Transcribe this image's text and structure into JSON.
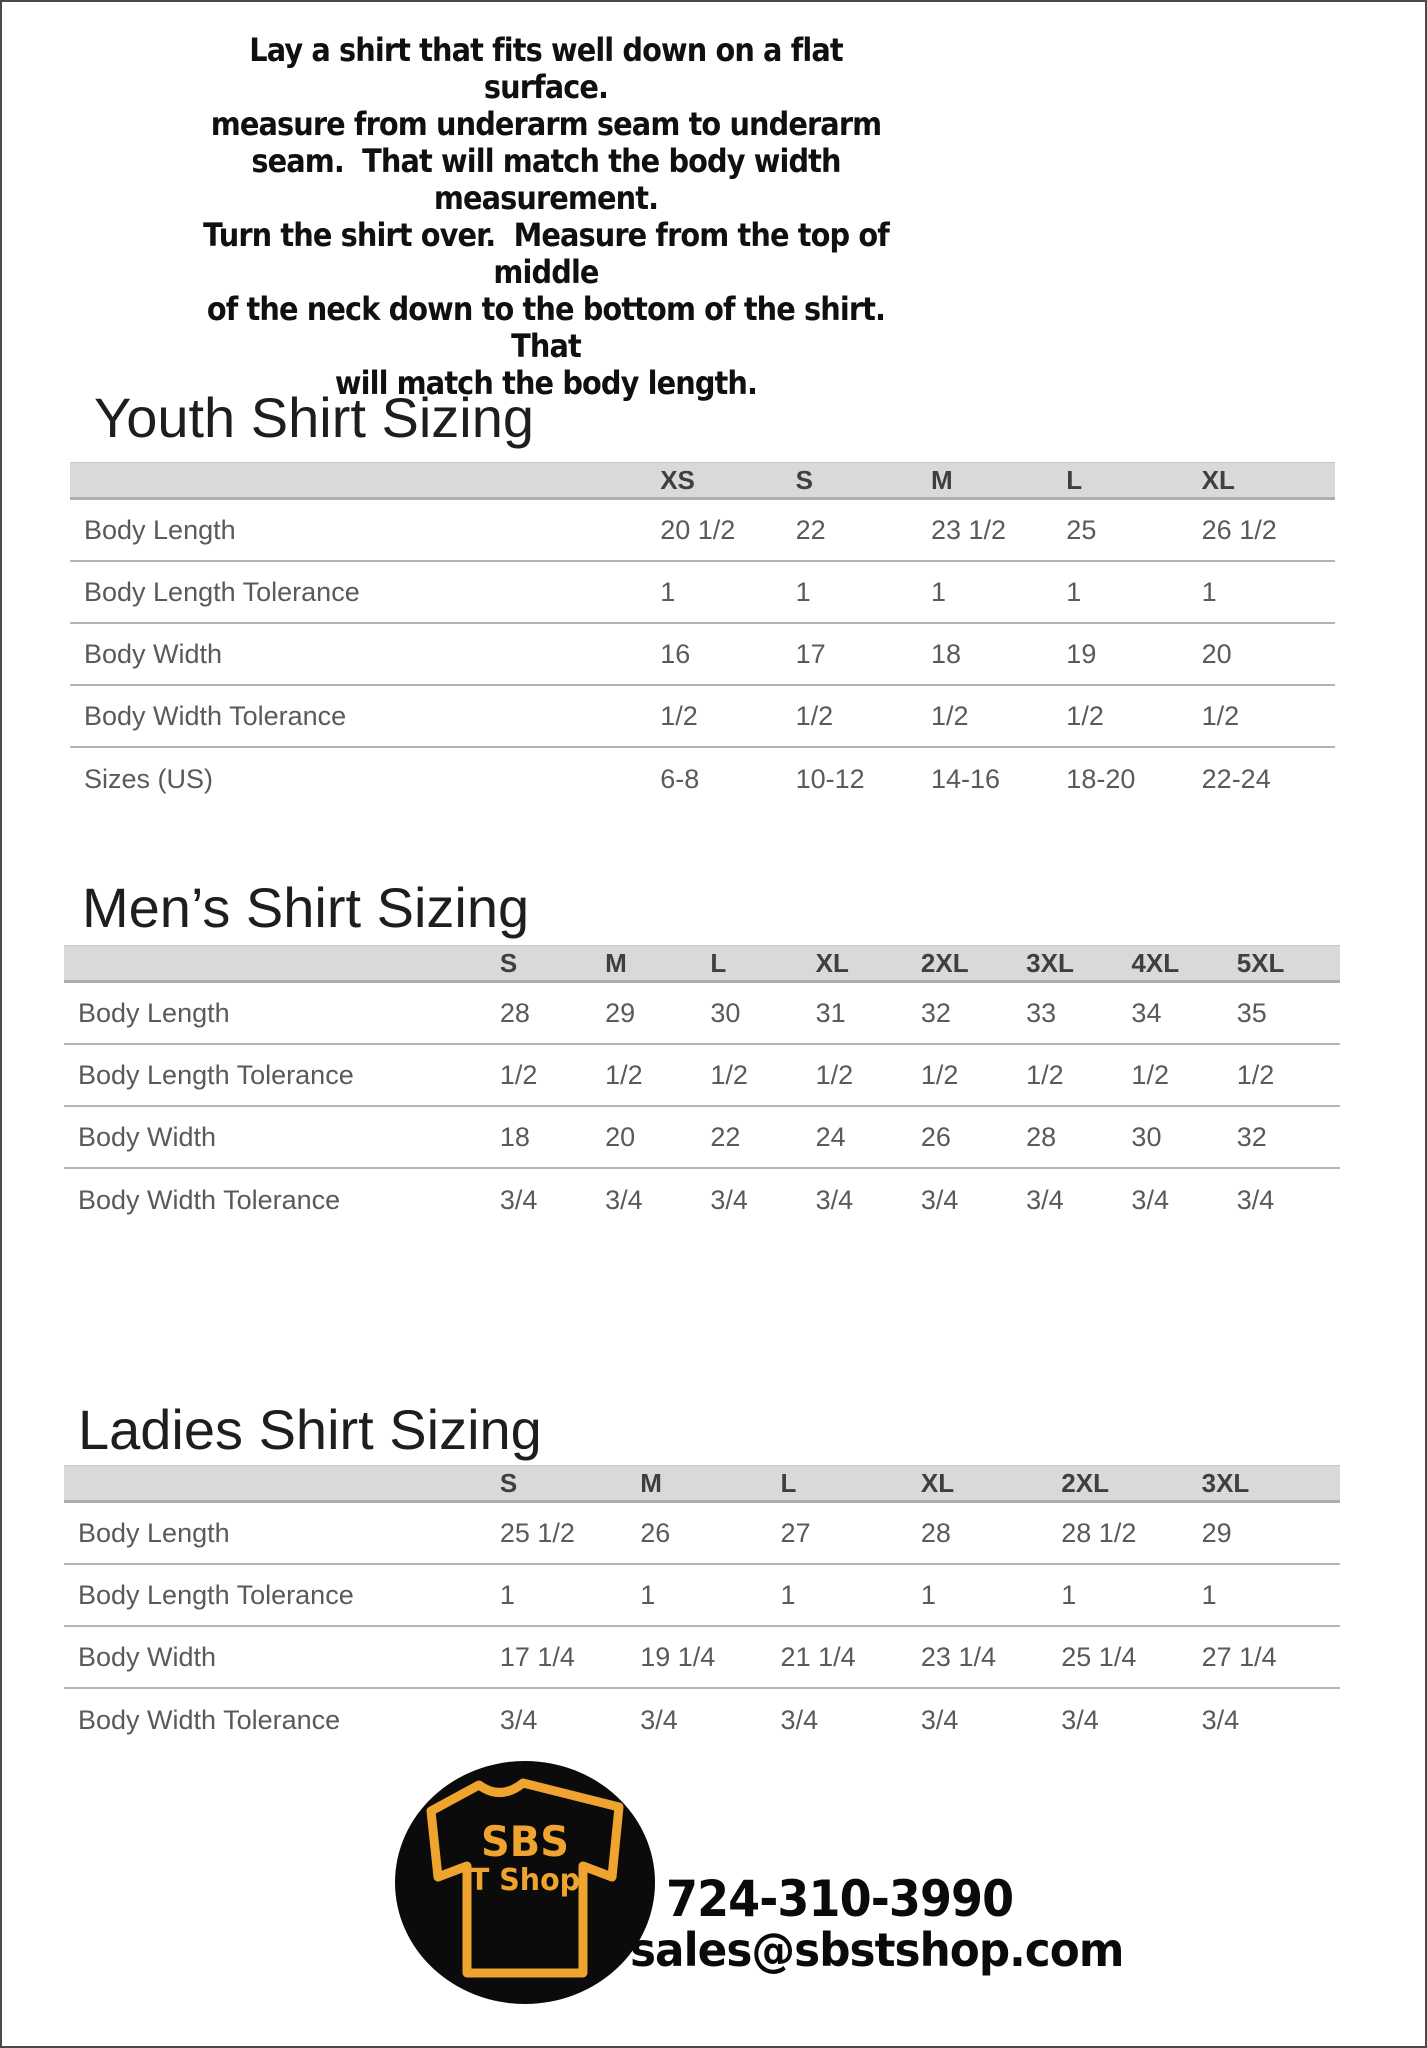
{
  "intro": {
    "lines": [
      "Lay a shirt that fits well down on a flat surface.",
      "measure from underarm seam to underarm",
      "seam.  That will match the body width measurement.",
      "Turn the shirt over.  Measure from the top of middle",
      "of the neck down to the bottom of the shirt.  That",
      "will match the body length."
    ]
  },
  "tables": [
    {
      "title": "Youth Shirt Sizing",
      "columns": [
        "XS",
        "S",
        "M",
        "L",
        "XL"
      ],
      "rows": [
        {
          "label": "Body Length",
          "values": [
            "20 1/2",
            "22",
            "23 1/2",
            "25",
            "26 1/2"
          ]
        },
        {
          "label": "Body Length Tolerance",
          "values": [
            "1",
            "1",
            "1",
            "1",
            "1"
          ]
        },
        {
          "label": "Body Width",
          "values": [
            "16",
            "17",
            "18",
            "19",
            "20"
          ]
        },
        {
          "label": "Body Width Tolerance",
          "values": [
            "1/2",
            "1/2",
            "1/2",
            "1/2",
            "1/2"
          ]
        },
        {
          "label": "Sizes (US)",
          "values": [
            "6-8",
            "10-12",
            "14-16",
            "18-20",
            "22-24"
          ]
        }
      ]
    },
    {
      "title": "Men’s Shirt Sizing",
      "columns": [
        "S",
        "M",
        "L",
        "XL",
        "2XL",
        "3XL",
        "4XL",
        "5XL"
      ],
      "rows": [
        {
          "label": "Body Length",
          "values": [
            "28",
            "29",
            "30",
            "31",
            "32",
            "33",
            "34",
            "35"
          ]
        },
        {
          "label": "Body Length Tolerance",
          "values": [
            "1/2",
            "1/2",
            "1/2",
            "1/2",
            "1/2",
            "1/2",
            "1/2",
            "1/2"
          ]
        },
        {
          "label": "Body Width",
          "values": [
            "18",
            "20",
            "22",
            "24",
            "26",
            "28",
            "30",
            "32"
          ]
        },
        {
          "label": "Body Width Tolerance",
          "values": [
            "3/4",
            "3/4",
            "3/4",
            "3/4",
            "3/4",
            "3/4",
            "3/4",
            "3/4"
          ]
        }
      ]
    },
    {
      "title": "Ladies Shirt Sizing",
      "columns": [
        "S",
        "M",
        "L",
        "XL",
        "2XL",
        "3XL"
      ],
      "rows": [
        {
          "label": "Body Length",
          "values": [
            "25 1/2",
            "26",
            "27",
            "28",
            "28 1/2",
            "29"
          ]
        },
        {
          "label": "Body Length Tolerance",
          "values": [
            "1",
            "1",
            "1",
            "1",
            "1",
            "1"
          ]
        },
        {
          "label": "Body Width",
          "values": [
            "17 1/4",
            "19 1/4",
            "21 1/4",
            "23 1/4",
            "25 1/4",
            "27 1/4"
          ]
        },
        {
          "label": "Body Width Tolerance",
          "values": [
            "3/4",
            "3/4",
            "3/4",
            "3/4",
            "3/4",
            "3/4"
          ]
        }
      ]
    }
  ],
  "logo": {
    "line1": "SBS",
    "line2": "T Shop"
  },
  "contact": {
    "phone": "724-310-3990",
    "email": "sales@sbstshop.com"
  },
  "colors": {
    "accent_gold": "#efa42f",
    "logo_background": "#0b0b0b",
    "table_header_bg": "#d9d9d9",
    "table_text": "#5a5a5a",
    "heading_text": "#1e1e1e"
  }
}
